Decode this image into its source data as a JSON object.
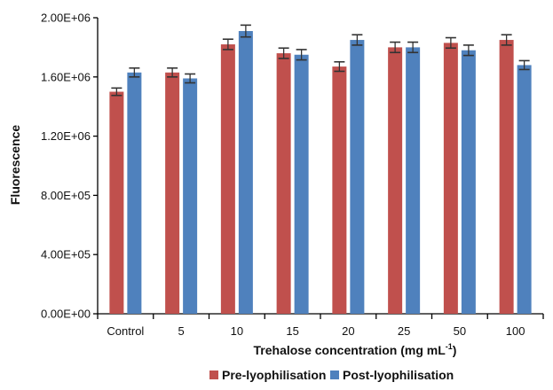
{
  "chart_data": {
    "type": "bar",
    "xlabel": "Trehalose concentration (mg mL",
    "xlabel_superscript": "-1",
    "xlabel_suffix": ")",
    "ylabel": "Fluorescence",
    "categories": [
      "Control",
      "5",
      "10",
      "15",
      "20",
      "25",
      "50",
      "100"
    ],
    "ylim": [
      0,
      2000000
    ],
    "yticks": [
      0,
      400000,
      800000,
      1200000,
      1600000,
      2000000
    ],
    "ytick_labels": [
      "0.00E+00",
      "4.00E+05",
      "8.00E+05",
      "1.20E+06",
      "1.60E+06",
      "2.00E+06"
    ],
    "grid": false,
    "legend_position": "bottom",
    "series": [
      {
        "name": "Pre-lyophilisation",
        "color": "#c0504d",
        "values": [
          1500000,
          1630000,
          1820000,
          1760000,
          1670000,
          1800000,
          1830000,
          1850000
        ],
        "errors": [
          25000,
          30000,
          35000,
          35000,
          32000,
          35000,
          35000,
          35000
        ]
      },
      {
        "name": "Post-lyophilisation",
        "color": "#4f81bd",
        "values": [
          1630000,
          1590000,
          1910000,
          1750000,
          1850000,
          1800000,
          1780000,
          1680000
        ],
        "errors": [
          30000,
          30000,
          40000,
          35000,
          35000,
          35000,
          35000,
          30000
        ]
      }
    ]
  }
}
